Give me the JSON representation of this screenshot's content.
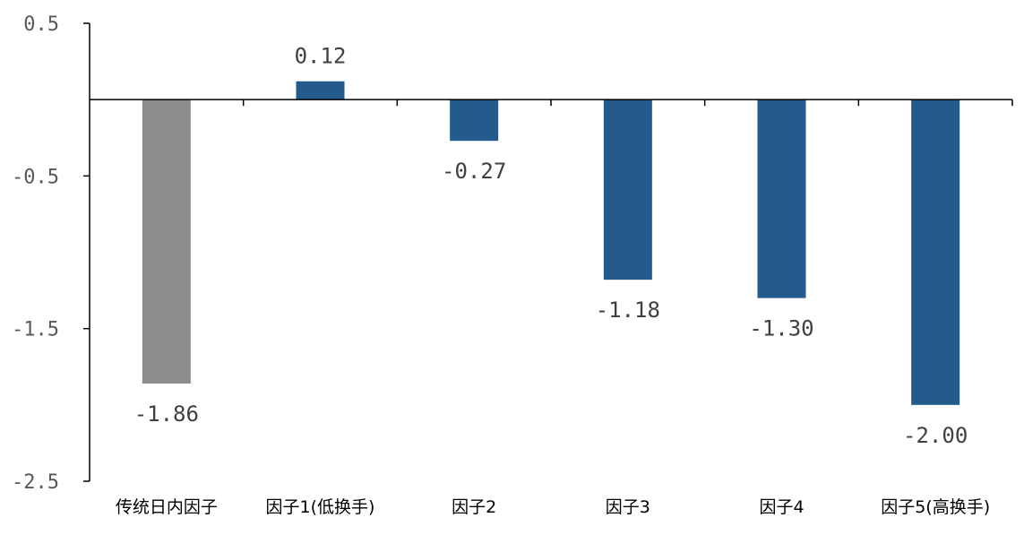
{
  "chart_data": {
    "type": "bar",
    "categories": [
      "传统日内因子",
      "因子1(低换手)",
      "因子2",
      "因子3",
      "因子4",
      "因子5(高换手)"
    ],
    "values": [
      -1.86,
      0.12,
      -0.27,
      -1.18,
      -1.3,
      -2.0
    ],
    "value_labels": [
      "-1.86",
      "0.12",
      "-0.27",
      "-1.18",
      "-1.30",
      "-2.00"
    ],
    "yticks": [
      0.5,
      -0.5,
      -1.5,
      -2.5
    ],
    "ytick_labels": [
      "0.5",
      "-0.5",
      "-1.5",
      "-2.5"
    ],
    "ylim": [
      -2.5,
      0.5
    ],
    "title": "",
    "xlabel": "",
    "ylabel": "",
    "grid": false,
    "legend": "none",
    "bar_colors": [
      "#8c8c8c",
      "#235b8d",
      "#235b8d",
      "#235b8d",
      "#235b8d",
      "#235b8d"
    ],
    "axis_color": "#000000"
  }
}
